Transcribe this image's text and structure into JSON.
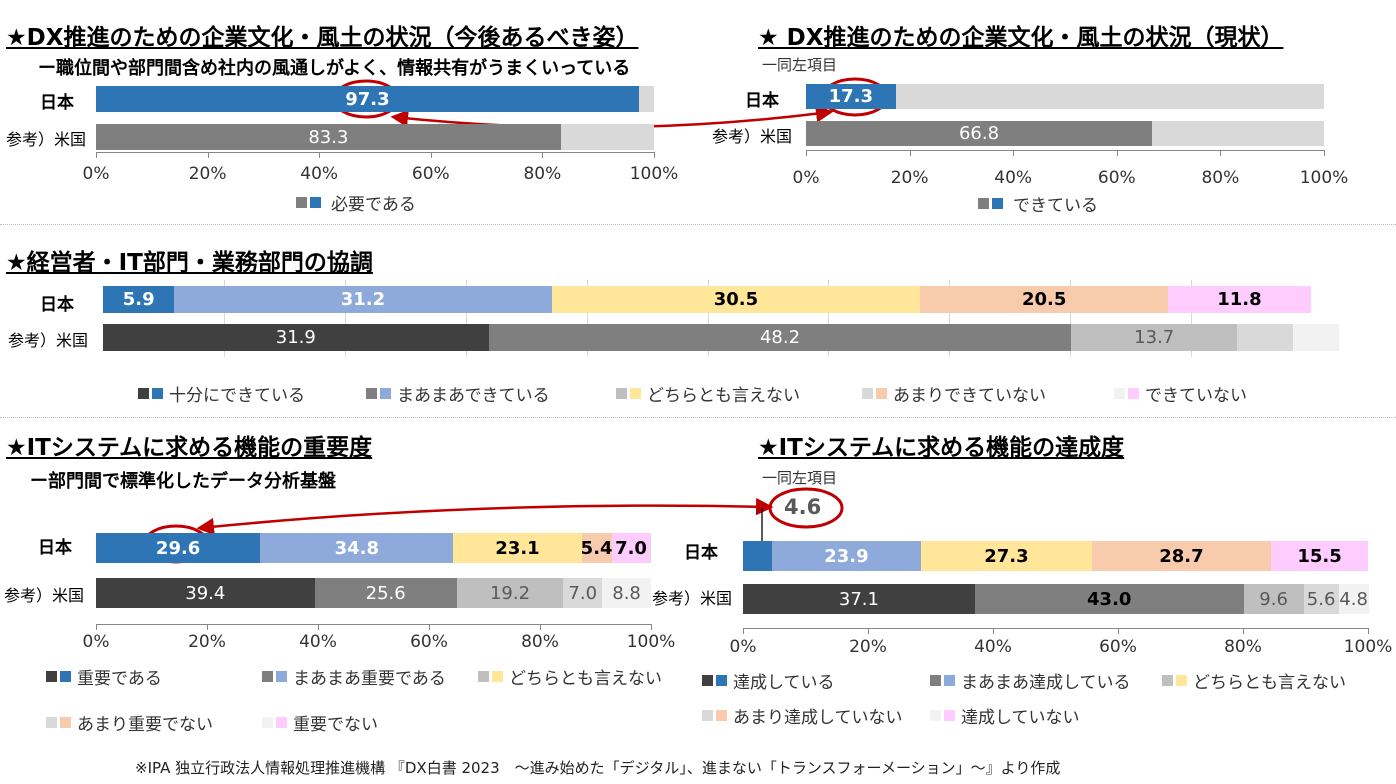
{
  "colors": {
    "jp1": "#2e75b6",
    "jp2": "#8eaadb",
    "jp3": "#ffe699",
    "jp4": "#f8cbad",
    "jp5": "#ffccff",
    "us1": "#404040",
    "us2": "#7f7f7f",
    "us3": "#bfbfbf",
    "us4": "#d9d9d9",
    "us5": "#f2f2f2",
    "us_single": "#7f7f7f",
    "rest": "#d9d9d9",
    "highlight": "#c00000"
  },
  "axis_ticks": [
    "0%",
    "20%",
    "40%",
    "60%",
    "80%",
    "100%"
  ],
  "panel_tl": {
    "title": "★DX推進のための企業文化・風土の状況（今後あるべき姿）",
    "subtitle": "ー職位間や部門間含め社内の風通しがよく、情報共有がうまくいっている",
    "row_jp": "日本",
    "row_us": "参考）米国",
    "legend": "必要である"
  },
  "panel_tr": {
    "title": "★ DX推進のための企業文化・風土の状況（現状）",
    "note": "一同左項目",
    "row_jp": "日本",
    "row_us": "参考）米国",
    "legend": "できている"
  },
  "panel_mid": {
    "title": "★経営者・IT部門・業務部門の協調",
    "row_jp": "日本",
    "row_us": "参考）米国",
    "legend": [
      "十分にできている",
      "まあまあできている",
      "どちらとも言えない",
      "あまりできていない",
      "できていない"
    ]
  },
  "panel_bl": {
    "title": "★ITシステムに求める機能の重要度",
    "subtitle": "ー部門間で標準化したデータ分析基盤",
    "row_jp": "日本",
    "row_us": "参考）米国",
    "legend": [
      "重要である",
      "まあまあ重要である",
      "どちらとも言えない",
      "あまり重要でない",
      "重要でない"
    ]
  },
  "panel_br": {
    "title": "★ITシステムに求める機能の達成度",
    "note": "一同左項目",
    "callout": "4.6",
    "row_jp": "日本",
    "row_us": "参考）米国",
    "legend": [
      "達成している",
      "まあまあ達成している",
      "どちらとも言えない",
      "あまり達成していない",
      "達成していない"
    ]
  },
  "footer": "※IPA 独立行政法人情報処理推進機構 『DX白書 2023　～進み始めた「デジタル」、進まない「トランスフォーメーション」～』より作成",
  "chart_data": [
    {
      "type": "bar",
      "orientation": "horizontal",
      "stacked": true,
      "title": "★DX推進のための企業文化・風土の状況（今後あるべき姿）",
      "subtitle": "ー職位間や部門間含め社内の風通しがよく、情報共有がうまくいっている",
      "categories": [
        "日本",
        "参考）米国"
      ],
      "series": [
        {
          "name": "必要である",
          "values": [
            97.3,
            83.3
          ]
        }
      ],
      "xlim": [
        0,
        100
      ],
      "grid": false,
      "legend": "bottom"
    },
    {
      "type": "bar",
      "orientation": "horizontal",
      "stacked": true,
      "title": "★ DX推進のための企業文化・風土の状況（現状）",
      "categories": [
        "日本",
        "参考）米国"
      ],
      "series": [
        {
          "name": "できている",
          "values": [
            17.3,
            66.8
          ]
        }
      ],
      "xlim": [
        0,
        100
      ],
      "grid": false,
      "legend": "bottom"
    },
    {
      "type": "bar",
      "orientation": "horizontal",
      "stacked": true,
      "title": "★経営者・IT部門・業務部門の協調",
      "categories": [
        "日本",
        "参考）米国"
      ],
      "series": [
        {
          "name": "十分にできている",
          "values": [
            5.9,
            31.9
          ]
        },
        {
          "name": "まあまあできている",
          "values": [
            31.2,
            48.2
          ]
        },
        {
          "name": "どちらとも言えない",
          "values": [
            30.5,
            13.7
          ]
        },
        {
          "name": "あまりできていない",
          "values": [
            20.5,
            4.6
          ]
        },
        {
          "name": "できていない",
          "values": [
            11.8,
            3.8
          ]
        }
      ],
      "xlim": [
        0,
        100
      ],
      "grid": true,
      "legend": "bottom"
    },
    {
      "type": "bar",
      "orientation": "horizontal",
      "stacked": true,
      "title": "★ITシステムに求める機能の重要度",
      "subtitle": "ー部門間で標準化したデータ分析基盤",
      "categories": [
        "日本",
        "参考）米国"
      ],
      "series": [
        {
          "name": "重要である",
          "values": [
            29.6,
            39.4
          ]
        },
        {
          "name": "まあまあ重要である",
          "values": [
            34.8,
            25.6
          ]
        },
        {
          "name": "どちらとも言えない",
          "values": [
            23.1,
            19.2
          ]
        },
        {
          "name": "あまり重要でない",
          "values": [
            5.4,
            7.0
          ]
        },
        {
          "name": "重要でない",
          "values": [
            7.0,
            8.8
          ]
        }
      ],
      "xlim": [
        0,
        100
      ],
      "grid": false,
      "legend": "bottom"
    },
    {
      "type": "bar",
      "orientation": "horizontal",
      "stacked": true,
      "title": "★ITシステムに求める機能の達成度",
      "categories": [
        "日本",
        "参考）米国"
      ],
      "series": [
        {
          "name": "達成している",
          "values": [
            4.6,
            37.1
          ]
        },
        {
          "name": "まあまあ達成している",
          "values": [
            23.9,
            43.0
          ]
        },
        {
          "name": "どちらとも言えない",
          "values": [
            27.3,
            9.6
          ]
        },
        {
          "name": "あまり達成していない",
          "values": [
            28.7,
            5.6
          ]
        },
        {
          "name": "達成していない",
          "values": [
            15.5,
            4.8
          ]
        }
      ],
      "xlim": [
        0,
        100
      ],
      "grid": false,
      "legend": "bottom"
    }
  ]
}
